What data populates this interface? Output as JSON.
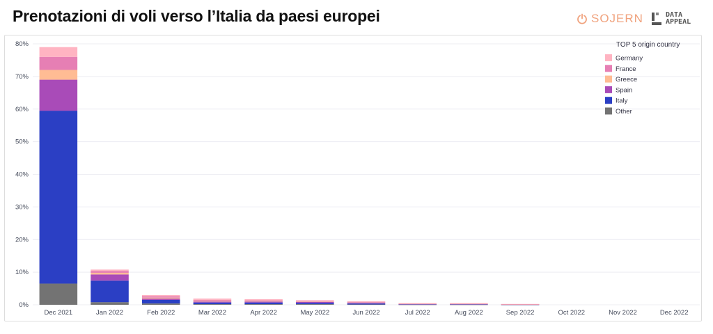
{
  "header": {
    "title": "Prenotazioni di voli verso l’Italia da paesi europei",
    "brand_sojern": "SOJERN",
    "brand_dataappeal": "DATA\nAPPEAL",
    "brand_sojern_color": "#f0a27d",
    "brand_dataappeal_color": "#555555"
  },
  "chart_data": {
    "type": "bar",
    "stacked": true,
    "categories": [
      "Dec 2021",
      "Jan 2022",
      "Feb 2022",
      "Mar 2022",
      "Apr 2022",
      "May 2022",
      "Jun 2022",
      "Jul 2022",
      "Aug 2022",
      "Sep 2022",
      "Oct 2022",
      "Nov 2022",
      "Dec 2022"
    ],
    "series": [
      {
        "name": "Other",
        "color": "#737373",
        "values": [
          6.5,
          0.8,
          0.4,
          0.2,
          0.2,
          0.2,
          0.1,
          0.05,
          0.05,
          0.03,
          0,
          0,
          0
        ]
      },
      {
        "name": "Italy",
        "color": "#2b3fc4",
        "values": [
          53.0,
          6.6,
          1.1,
          0.5,
          0.5,
          0.4,
          0.3,
          0.1,
          0.1,
          0.05,
          0,
          0,
          0
        ]
      },
      {
        "name": "Spain",
        "color": "#a94bb8",
        "values": [
          9.5,
          1.9,
          0.4,
          0.3,
          0.3,
          0.3,
          0.2,
          0.1,
          0.1,
          0.05,
          0,
          0,
          0
        ]
      },
      {
        "name": "Greece",
        "color": "#ffbc94",
        "values": [
          3.0,
          0.5,
          0.3,
          0.2,
          0.2,
          0.1,
          0.1,
          0.05,
          0.05,
          0.03,
          0,
          0,
          0
        ]
      },
      {
        "name": "France",
        "color": "#e67fb4",
        "values": [
          4.0,
          0.6,
          0.4,
          0.3,
          0.2,
          0.2,
          0.2,
          0.1,
          0.1,
          0.05,
          0,
          0,
          0
        ]
      },
      {
        "name": "Germany",
        "color": "#ffb4c2",
        "values": [
          3.0,
          0.4,
          0.4,
          0.4,
          0.3,
          0.2,
          0.2,
          0.1,
          0.1,
          0.05,
          0,
          0,
          0
        ]
      }
    ],
    "legend_order": [
      "Germany",
      "France",
      "Greece",
      "Spain",
      "Italy",
      "Other"
    ],
    "legend_title": "TOP 5 origin country",
    "legend_position": "top-right",
    "ylim": [
      0,
      80
    ],
    "yticks": [
      0,
      10,
      20,
      30,
      40,
      50,
      60,
      70,
      80
    ],
    "ytick_labels": [
      "0%",
      "10%",
      "20%",
      "30%",
      "40%",
      "50%",
      "60%",
      "70%",
      "80%"
    ],
    "xlabel": "",
    "ylabel": "",
    "grid": true
  }
}
